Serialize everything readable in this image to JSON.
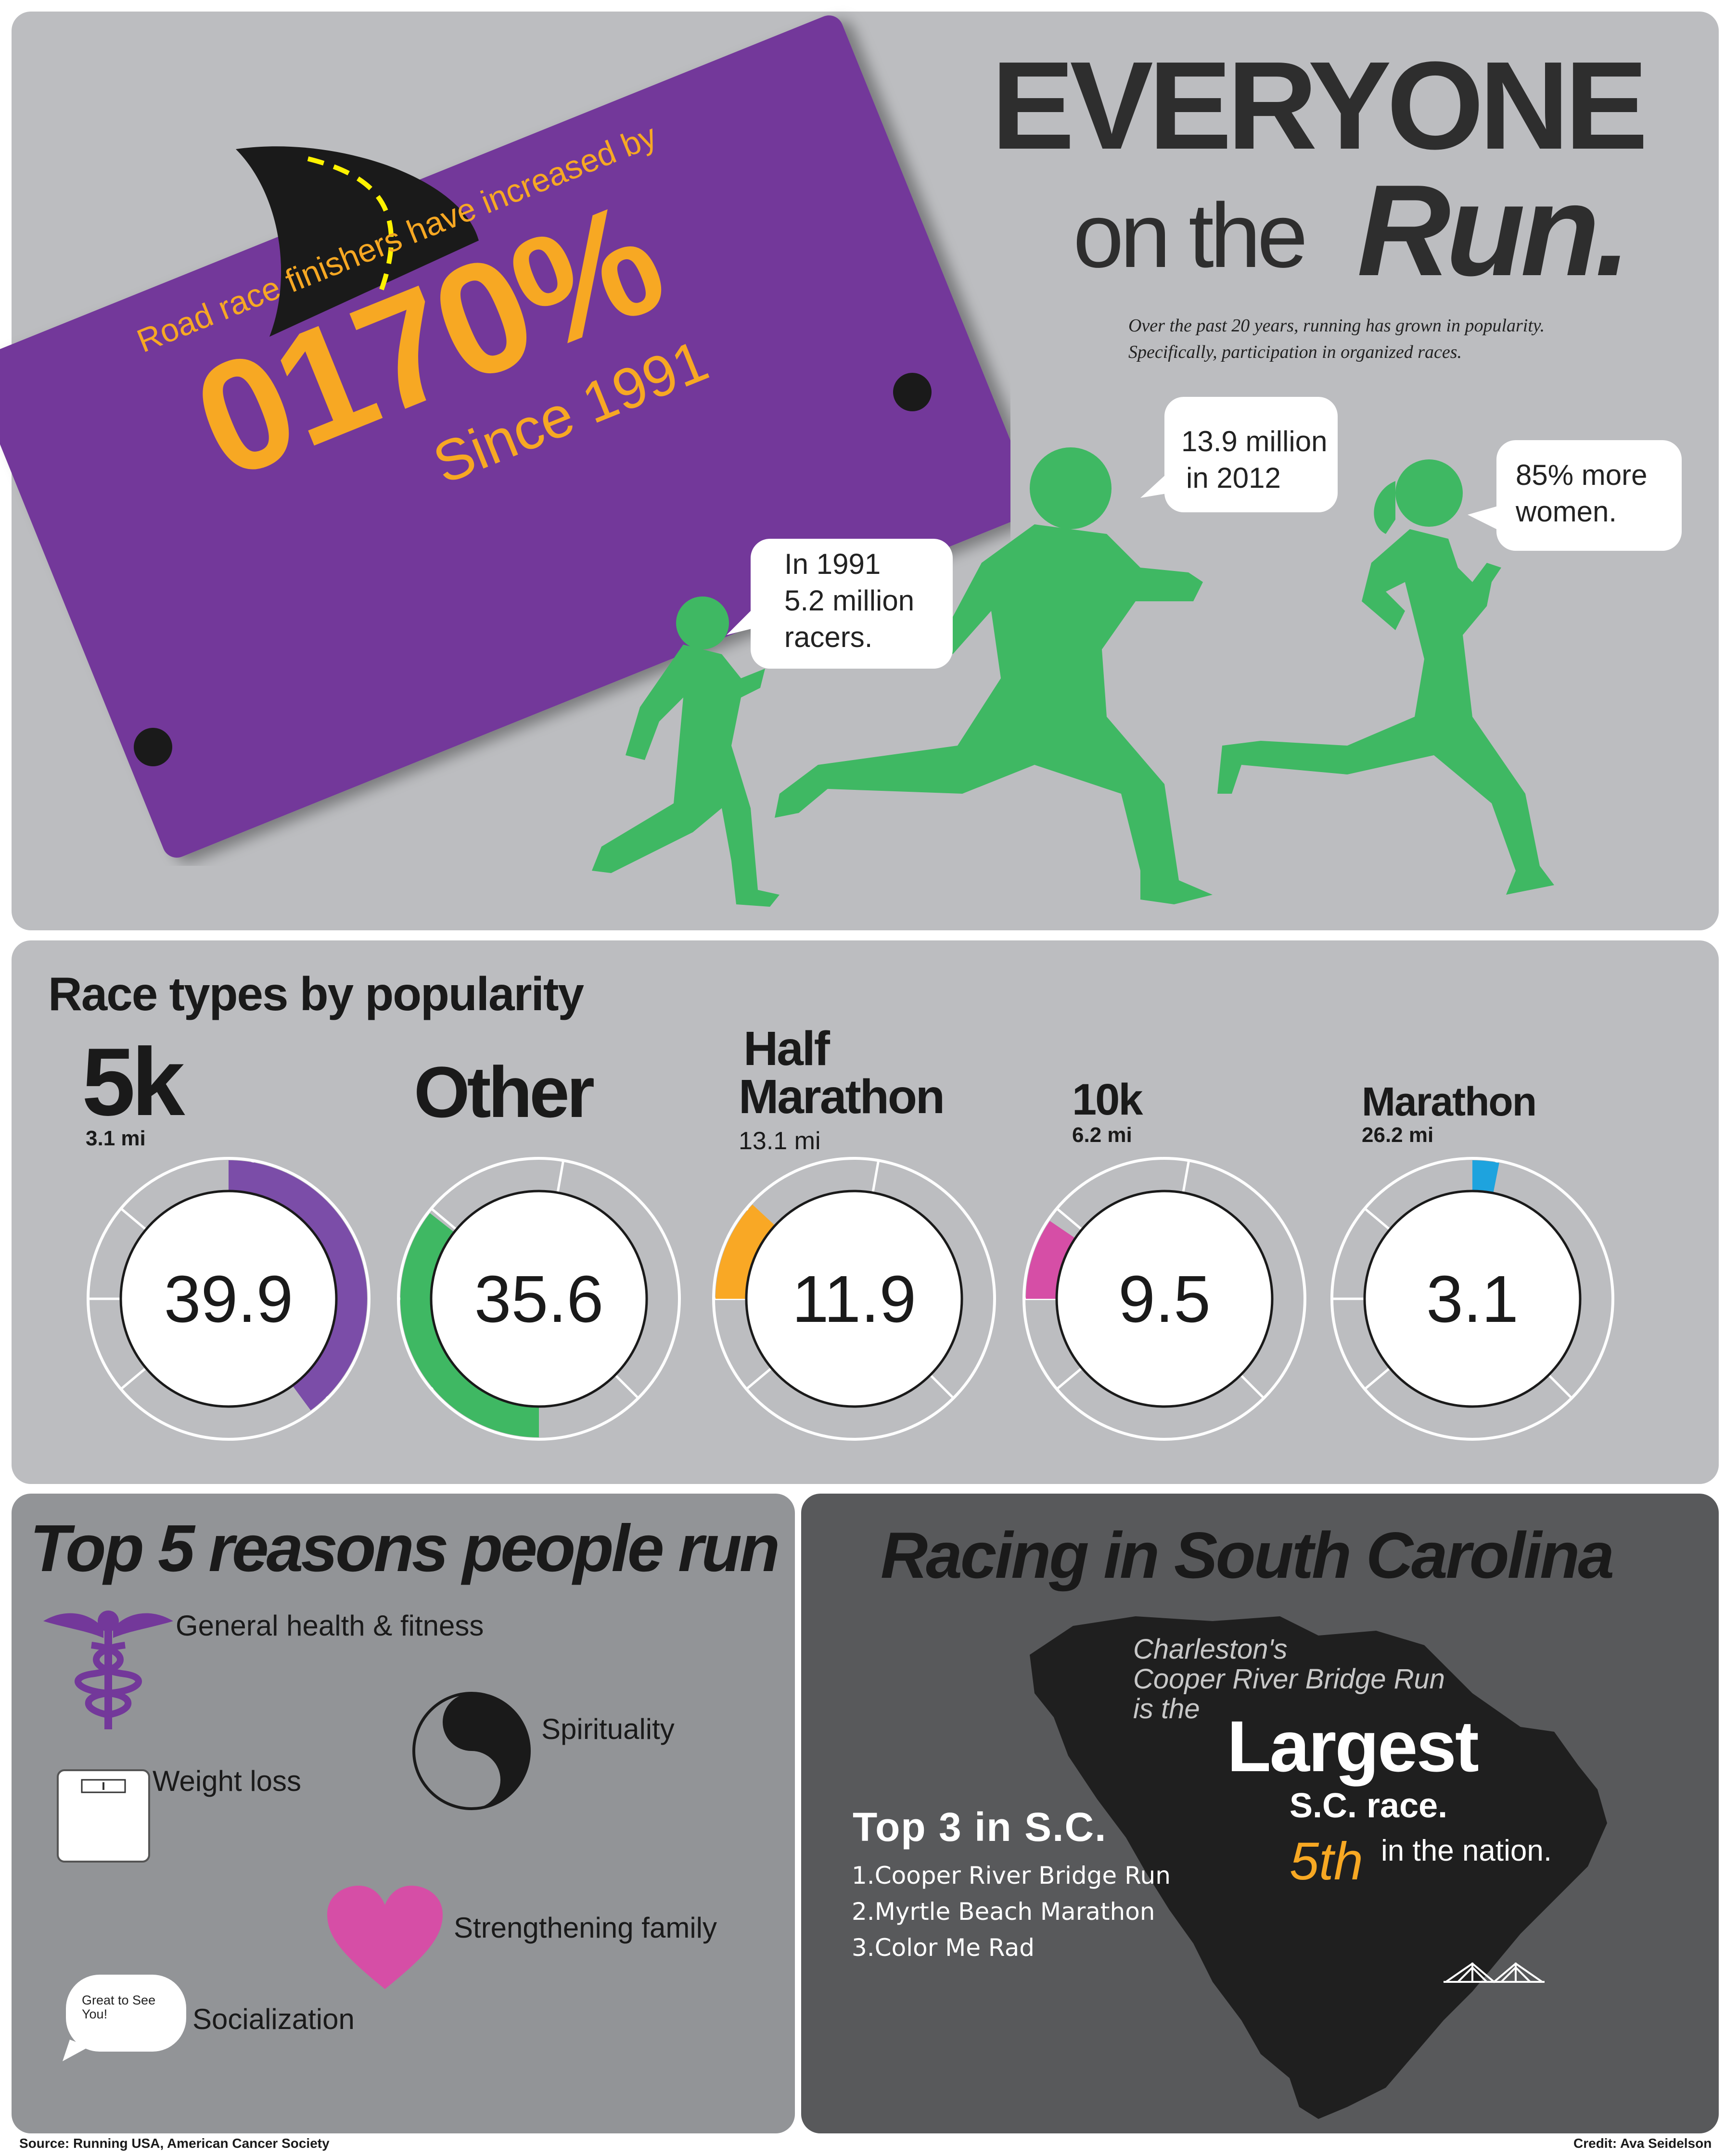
{
  "hero": {
    "title_line1": "EVERYONE",
    "title_on_the": "on the",
    "title_run": "Run.",
    "subtitle_line1": "Over the past 20 years, running has grown in popularity.",
    "subtitle_line2": "Specifically, participation in organized races."
  },
  "sign": {
    "line1": "Road race finishers have increased by",
    "percent": "0170%",
    "since": "Since 1991"
  },
  "bubbles": {
    "b1991": {
      "line1": "In 1991",
      "line2": "5.2 million",
      "line3": "racers."
    },
    "b2012": {
      "line1": "13.9 million",
      "line2": "in 2012"
    },
    "women": {
      "line1": "85% more",
      "line2": "women."
    }
  },
  "races": {
    "title": "Race types by popularity",
    "items": [
      {
        "name": "5k",
        "distance": "3.1 mi",
        "value": "39.9",
        "pct": 39.9,
        "color": "#7b4da8"
      },
      {
        "name": "Other",
        "distance": "",
        "value": "35.6",
        "pct": 35.6,
        "color": "#3fb863"
      },
      {
        "name_line1": "Half",
        "name_line2": "Marathon",
        "distance": "13.1 mi",
        "value": "11.9",
        "pct": 11.9,
        "color": "#f9a825"
      },
      {
        "name": "10k",
        "distance": "6.2 mi",
        "value": "9.5",
        "pct": 9.5,
        "color": "#d64ea6"
      },
      {
        "name": "Marathon",
        "distance": "26.2 mi",
        "value": "3.1",
        "pct": 3.1,
        "color": "#1ea3de"
      }
    ]
  },
  "reasons": {
    "title": "Top 5 reasons people run",
    "general_health": "General health & fitness",
    "spirituality": "Spirituality",
    "weight_loss": "Weight loss",
    "family": "Strengthening family",
    "socialization": "Socialization",
    "bubble_text_line1": "Great to See",
    "bubble_text_line2": "You!"
  },
  "sc": {
    "title": "Racing in South Carolina",
    "intro_line1": "Charleston's",
    "intro_line2": "Cooper River Bridge Run",
    "intro_line3": "is the",
    "largest": "Largest",
    "sc_race": "S.C. race.",
    "fifth": "5th",
    "in_nation": "in the nation.",
    "top3_title": "Top 3 in S.C.",
    "top3": [
      "1.Cooper River Bridge Run",
      "2.Myrtle Beach Marathon",
      "3.Color Me Rad"
    ]
  },
  "footer": {
    "source": "Source: Running USA, American Cancer Society",
    "credit": "Credit: Ava Seidelson"
  },
  "colors": {
    "purple": "#73389a",
    "orange": "#f7a823",
    "green": "#3fb863",
    "panel_light": "#bcbdc0",
    "panel_mid": "#929497",
    "panel_dark": "#58595b"
  }
}
